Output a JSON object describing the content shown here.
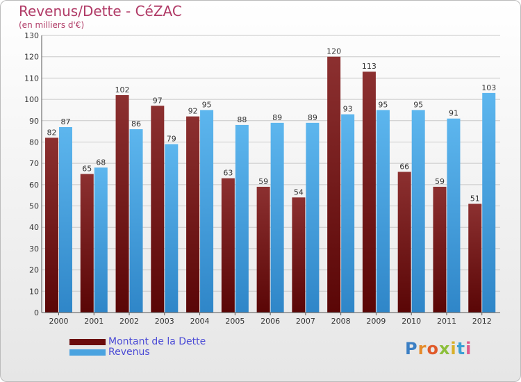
{
  "title": "Revenus/Dette - CéZAC",
  "subtitle": "(en milliers d'€)",
  "brand": "Proxiti",
  "colors": {
    "debt": "#6b0d0d",
    "debt_light": "#8c3030",
    "revenue": "#4aa3e0",
    "revenue_light": "#5db6ee",
    "title": "#b03a66",
    "legend_text": "#4b4bd6"
  },
  "chart_data": {
    "type": "bar",
    "title": "Revenus/Dette - CéZAC",
    "subtitle": "(en milliers d'€)",
    "categories": [
      "2000",
      "2001",
      "2002",
      "2003",
      "2004",
      "2005",
      "2006",
      "2007",
      "2008",
      "2009",
      "2010",
      "2011",
      "2012"
    ],
    "series": [
      {
        "name": "Montant de la Dette",
        "values": [
          82,
          65,
          102,
          97,
          92,
          63,
          59,
          54,
          120,
          113,
          66,
          59,
          51
        ]
      },
      {
        "name": "Revenus",
        "values": [
          87,
          68,
          86,
          79,
          95,
          88,
          89,
          89,
          93,
          95,
          95,
          91,
          103
        ]
      }
    ],
    "ylim": [
      0,
      130
    ],
    "yticks": [
      0,
      10,
      20,
      30,
      40,
      50,
      60,
      70,
      80,
      90,
      100,
      110,
      120,
      130
    ],
    "grid": true,
    "legend_position": "bottom-left"
  }
}
